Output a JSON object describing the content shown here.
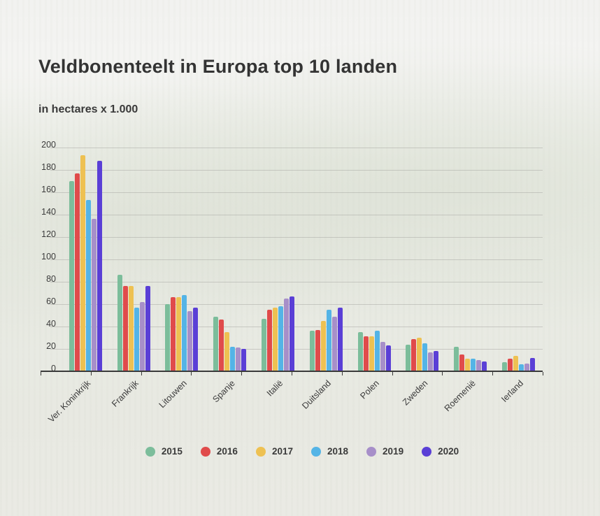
{
  "page": {
    "title": "Veldbonenteelt in Europa top 10 landen",
    "subtitle": "in hectares x 1.000"
  },
  "chart_data": {
    "type": "bar",
    "title": "Veldbonenteelt in Europa top 10 landen",
    "subtitle": "in hectares x 1.000",
    "ylabel": "hectares x 1.000",
    "ylim": [
      0,
      200
    ],
    "ytick_step": 20,
    "grid": true,
    "legend_position": "bottom",
    "categories": [
      "Ver. Koninkrijk",
      "Frankrijk",
      "Litouwen",
      "Spanje",
      "Italië",
      "Duitsland",
      "Polen",
      "Zweden",
      "Roemenië",
      "Ierland"
    ],
    "series": [
      {
        "name": "2015",
        "color": "#7cbd9b",
        "values": [
          170,
          86,
          60,
          49,
          47,
          36,
          35,
          24,
          22,
          8
        ]
      },
      {
        "name": "2016",
        "color": "#e04b4b",
        "values": [
          177,
          76,
          66,
          46,
          55,
          37,
          31,
          29,
          15,
          11
        ]
      },
      {
        "name": "2017",
        "color": "#eec152",
        "values": [
          193,
          76,
          66,
          35,
          57,
          45,
          31,
          30,
          11,
          14
        ]
      },
      {
        "name": "2018",
        "color": "#54b4e6",
        "values": [
          153,
          57,
          68,
          22,
          58,
          55,
          36,
          25,
          11,
          6
        ]
      },
      {
        "name": "2019",
        "color": "#a78fc9",
        "values": [
          136,
          62,
          54,
          21,
          65,
          49,
          26,
          17,
          10,
          7
        ]
      },
      {
        "name": "2020",
        "color": "#5a3fd6",
        "values": [
          188,
          76,
          57,
          20,
          67,
          57,
          23,
          18,
          9,
          12
        ]
      }
    ]
  }
}
